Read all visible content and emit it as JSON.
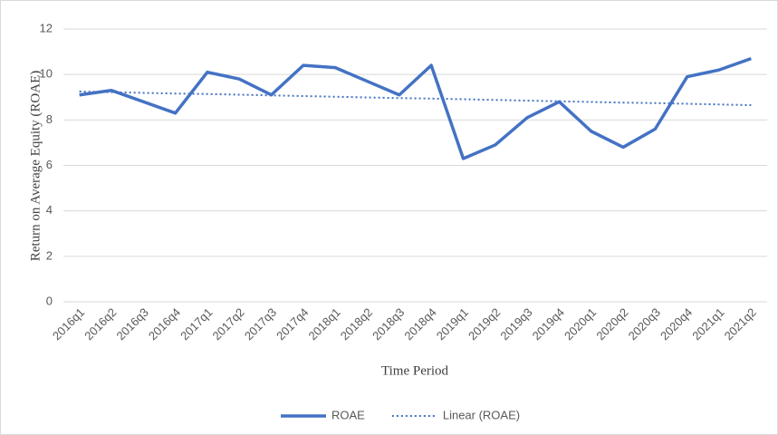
{
  "chart_data": {
    "type": "line",
    "x_label": "Time Period",
    "y_label": "Return on Average Equity (ROAE)",
    "categories": [
      "2016q1",
      "2016q2",
      "2016q3",
      "2016q4",
      "2017q1",
      "2017q2",
      "2017q3",
      "2017q4",
      "2018q1",
      "2018q2",
      "2018q3",
      "2018q4",
      "2019q1",
      "2019q2",
      "2019q3",
      "2019q4",
      "2020q1",
      "2020q2",
      "2020q3",
      "2020q4",
      "2021q1",
      "2021q2"
    ],
    "series": [
      {
        "name": "ROAE",
        "color": "#4472c4",
        "style": "solid",
        "values": [
          9.1,
          9.3,
          8.8,
          8.3,
          10.1,
          9.8,
          9.1,
          10.4,
          10.3,
          9.7,
          9.1,
          10.4,
          6.3,
          6.9,
          8.1,
          8.8,
          7.5,
          6.8,
          7.6,
          9.9,
          10.2,
          10.7
        ]
      },
      {
        "name": "Linear (ROAE)",
        "color": "#4472c4",
        "style": "dotted",
        "values": [
          9.25,
          9.22,
          9.19,
          9.16,
          9.14,
          9.11,
          9.08,
          9.05,
          9.02,
          8.99,
          8.96,
          8.94,
          8.91,
          8.88,
          8.85,
          8.82,
          8.79,
          8.76,
          8.74,
          8.71,
          8.68,
          8.65
        ]
      }
    ],
    "ylim": [
      0,
      12
    ],
    "yticks": [
      0,
      2,
      4,
      6,
      8,
      10,
      12
    ],
    "grid": true,
    "legend": "bottom"
  }
}
